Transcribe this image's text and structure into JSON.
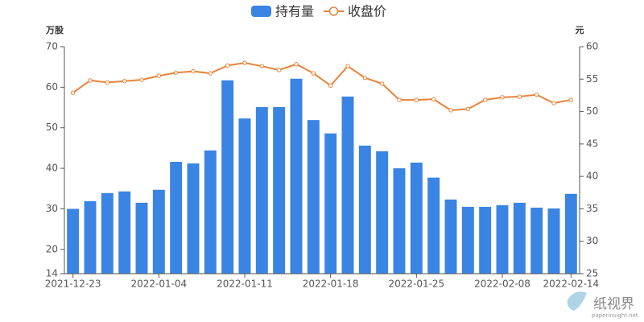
{
  "chart_data": {
    "type": "bar_line",
    "y_axis_label": "万股",
    "y2_axis_label": "元",
    "categories": [
      "2021-12-23",
      null,
      null,
      null,
      null,
      "2022-01-04",
      null,
      null,
      null,
      null,
      "2022-01-11",
      null,
      null,
      null,
      null,
      "2022-01-18",
      null,
      null,
      null,
      null,
      "2022-01-25",
      null,
      null,
      null,
      null,
      "2022-02-08",
      null,
      null,
      null,
      "2022-02-14"
    ],
    "series": [
      {
        "name": "持有量",
        "type": "bar",
        "color": "#3a84e3",
        "values": [
          30,
          31.9,
          33.9,
          34.3,
          31.5,
          34.7,
          41.6,
          41.2,
          44.4,
          61.7,
          52.3,
          55.1,
          55.1,
          62.1,
          51.9,
          48.6,
          57.7,
          45.6,
          44.2,
          40.0,
          41.4,
          37.7,
          32.3,
          30.5,
          30.5,
          30.9,
          31.5,
          30.3,
          30.1,
          33.7
        ]
      },
      {
        "name": "收盘价",
        "type": "line",
        "axis": "y2",
        "color": "#e8833a",
        "values": [
          52.9,
          54.8,
          54.5,
          54.7,
          54.9,
          55.5,
          56.0,
          56.2,
          55.9,
          57.1,
          57.5,
          57.0,
          56.4,
          57.3,
          55.9,
          54.0,
          57.0,
          55.2,
          54.3,
          51.8,
          51.8,
          51.9,
          50.2,
          50.4,
          51.8,
          52.2,
          52.3,
          52.6,
          51.3,
          51.8
        ]
      }
    ],
    "ylim": [
      14,
      70
    ],
    "yticks": [
      14,
      20,
      30,
      40,
      50,
      60,
      70
    ],
    "y2lim": [
      25,
      60
    ],
    "y2ticks": [
      25,
      30,
      35,
      40,
      45,
      50,
      55,
      60
    ],
    "grid": false,
    "legend": "top"
  },
  "watermark": {
    "name": "纸视界",
    "site": "paperinsight.net"
  }
}
